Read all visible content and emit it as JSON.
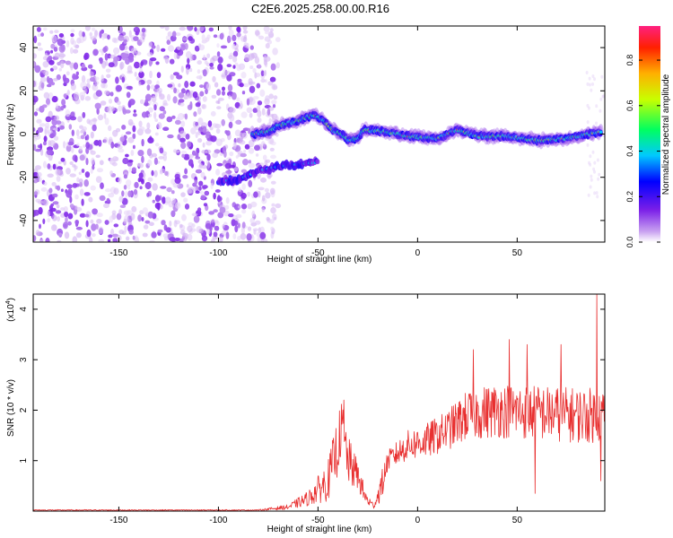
{
  "figure_title": "C2E6.2025.258.00.00.R16",
  "chart_data": [
    {
      "type": "heatmap",
      "title": "C2E6.2025.258.00.00.R16",
      "xlabel": "Height of straight line (km)",
      "ylabel": "Frequency (Hz)",
      "xlim": [
        -193,
        94
      ],
      "ylim": [
        -50,
        50
      ],
      "xticks": [
        -150,
        -100,
        -50,
        0,
        50
      ],
      "yticks": [
        -40,
        -20,
        0,
        20,
        40
      ],
      "colorbar": {
        "label": "Normalized spectral amplitude",
        "range": [
          0,
          0.95
        ],
        "ticks": [
          "0.0",
          "0.2",
          "0.4",
          "0.6",
          "0.8"
        ],
        "colormap": [
          "#ffffff",
          "#c8a0f0",
          "#7a1ee8",
          "#0000ff",
          "#00c8ff",
          "#00ff60",
          "#c8ff00",
          "#ffb000",
          "#ff2000",
          "#ff2080"
        ]
      },
      "features": {
        "noise_region_km": [
          -193,
          -80
        ],
        "main_trace": [
          {
            "x": -83,
            "y": 0
          },
          {
            "x": -75,
            "y": 1
          },
          {
            "x": -70,
            "y": 4
          },
          {
            "x": -60,
            "y": 6
          },
          {
            "x": -52,
            "y": 9
          },
          {
            "x": -47,
            "y": 6
          },
          {
            "x": -43,
            "y": 2
          },
          {
            "x": -38,
            "y": 0
          },
          {
            "x": -35,
            "y": -3
          },
          {
            "x": -30,
            "y": -2
          },
          {
            "x": -27,
            "y": 2
          },
          {
            "x": -15,
            "y": 1
          },
          {
            "x": -5,
            "y": -1
          },
          {
            "x": 10,
            "y": -2
          },
          {
            "x": 20,
            "y": 2
          },
          {
            "x": 30,
            "y": -1
          },
          {
            "x": 45,
            "y": -1
          },
          {
            "x": 60,
            "y": -3
          },
          {
            "x": 75,
            "y": -2
          },
          {
            "x": 92,
            "y": 1
          }
        ],
        "lower_trace": [
          {
            "x": -100,
            "y": -22
          },
          {
            "x": -90,
            "y": -21
          },
          {
            "x": -80,
            "y": -17
          },
          {
            "x": -70,
            "y": -15
          },
          {
            "x": -60,
            "y": -14
          },
          {
            "x": -50,
            "y": -13
          }
        ]
      }
    },
    {
      "type": "line",
      "xlabel": "Height of straight line (km)",
      "ylabel": "SNR (10 * v/v)",
      "scale_label": "(x10",
      "scale_exponent": "4",
      "scale_suffix": ")",
      "xlim": [
        -193,
        94
      ],
      "ylim": [
        0,
        4.3
      ],
      "xticks": [
        -150,
        -100,
        -50,
        0,
        50
      ],
      "yticks": [
        1,
        2,
        3,
        4
      ],
      "color": "#e83030",
      "envelope": [
        {
          "x": -193,
          "mean": 0.02,
          "spread": 0.01
        },
        {
          "x": -80,
          "mean": 0.02,
          "spread": 0.01
        },
        {
          "x": -65,
          "mean": 0.08,
          "spread": 0.05
        },
        {
          "x": -55,
          "mean": 0.25,
          "spread": 0.15
        },
        {
          "x": -45,
          "mean": 0.6,
          "spread": 0.4
        },
        {
          "x": -40,
          "mean": 1.3,
          "spread": 0.6
        },
        {
          "x": -38,
          "mean": 1.7,
          "spread": 0.5
        },
        {
          "x": -35,
          "mean": 1.0,
          "spread": 0.5
        },
        {
          "x": -30,
          "mean": 0.7,
          "spread": 0.3
        },
        {
          "x": -26,
          "mean": 0.25,
          "spread": 0.15
        },
        {
          "x": -22,
          "mean": 0.1,
          "spread": 0.05
        },
        {
          "x": -18,
          "mean": 0.5,
          "spread": 0.3
        },
        {
          "x": -15,
          "mean": 1.0,
          "spread": 0.2
        },
        {
          "x": -5,
          "mean": 1.3,
          "spread": 0.3
        },
        {
          "x": 5,
          "mean": 1.4,
          "spread": 0.35
        },
        {
          "x": 15,
          "mean": 1.6,
          "spread": 0.4
        },
        {
          "x": 25,
          "mean": 1.9,
          "spread": 0.5
        },
        {
          "x": 40,
          "mean": 2.0,
          "spread": 0.55
        },
        {
          "x": 60,
          "mean": 1.95,
          "spread": 0.55
        },
        {
          "x": 80,
          "mean": 1.9,
          "spread": 0.55
        },
        {
          "x": 94,
          "mean": 1.9,
          "spread": 0.55
        }
      ],
      "spikes": [
        {
          "x": -37,
          "y": 2.2
        },
        {
          "x": 28,
          "y": 3.2
        },
        {
          "x": 46,
          "y": 3.4
        },
        {
          "x": 55,
          "y": 3.3
        },
        {
          "x": 59,
          "y": 0.35
        },
        {
          "x": 72,
          "y": 3.3
        },
        {
          "x": 90,
          "y": 4.3
        },
        {
          "x": 92,
          "y": 0.6
        }
      ]
    }
  ]
}
